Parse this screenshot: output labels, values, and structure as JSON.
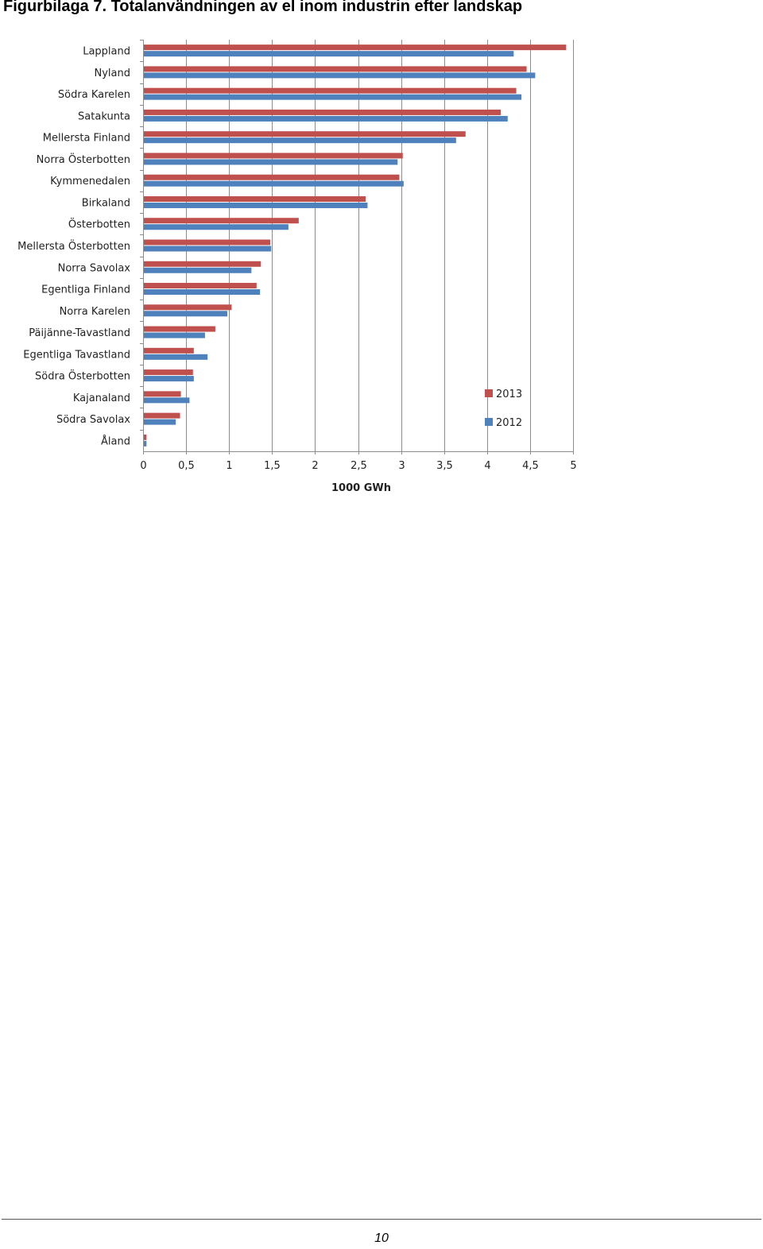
{
  "document": {
    "title": "Figurbilaga 7. Totalanvändningen av el inom industrin efter landskap",
    "page_number": "10"
  },
  "chart_data": {
    "type": "bar",
    "orientation": "horizontal",
    "xlabel": "1000 GWh",
    "xlim": [
      0,
      5
    ],
    "x_ticks": [
      "0",
      "0,5",
      "1",
      "1,5",
      "2",
      "2,5",
      "3",
      "3,5",
      "4",
      "4,5",
      "5"
    ],
    "grid": true,
    "legend_position": "right",
    "categories": [
      "Lappland",
      "Nyland",
      "Södra Karelen",
      "Satakunta",
      "Mellersta Finland",
      "Norra Österbotten",
      "Kymmenedalen",
      "Birkaland",
      "Österbotten",
      "Mellersta Österbotten",
      "Norra Savolax",
      "Egentliga Finland",
      "Norra Karelen",
      "Päijänne-Tavastland",
      "Egentliga Tavastland",
      "Södra Österbotten",
      "Kajanaland",
      "Södra Savolax",
      "Åland"
    ],
    "series": [
      {
        "name": "2013",
        "color": "#c0504d",
        "values": [
          4.92,
          4.46,
          4.34,
          4.16,
          3.75,
          3.02,
          2.98,
          2.59,
          1.81,
          1.48,
          1.37,
          1.32,
          1.03,
          0.84,
          0.59,
          0.58,
          0.44,
          0.43,
          0.04
        ]
      },
      {
        "name": "2012",
        "color": "#4f81bd",
        "values": [
          4.31,
          4.56,
          4.4,
          4.24,
          3.64,
          2.96,
          3.03,
          2.61,
          1.69,
          1.49,
          1.26,
          1.36,
          0.98,
          0.72,
          0.75,
          0.59,
          0.54,
          0.38,
          0.04
        ]
      }
    ]
  }
}
